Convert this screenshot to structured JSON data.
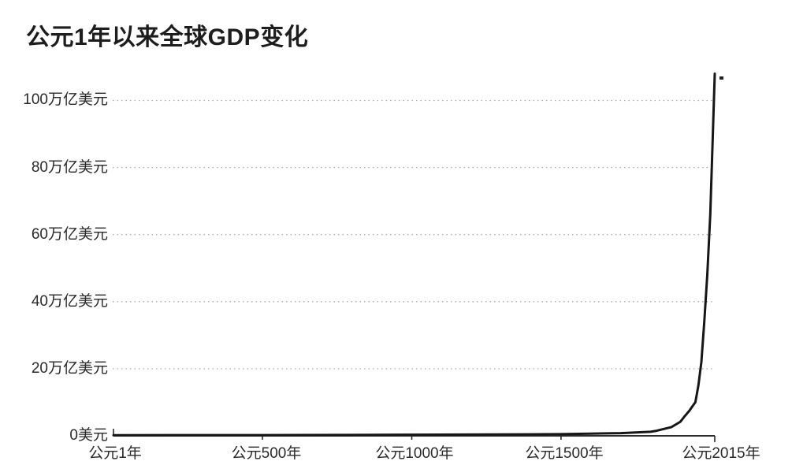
{
  "chart_data": {
    "type": "line",
    "title": "公元1年以来全球GDP变化",
    "xlabel": "",
    "ylabel": "",
    "x_unit": "年",
    "y_unit": "万亿美元",
    "xlim": [
      1,
      2015
    ],
    "ylim": [
      0,
      112
    ],
    "grid": "horizontal-dotted",
    "legend": "none",
    "line_color": "#161616",
    "grid_color": "#a6a6a6",
    "axis_color": "#2b2b2b",
    "x_tick_labels": [
      "公元1年",
      "公元500年",
      "公元1000年",
      "公元1500年",
      "公元2015年"
    ],
    "x_tick_years": [
      1,
      500,
      1000,
      1500,
      2015
    ],
    "y_tick_labels": [
      "100万亿美元",
      "80万亿美元",
      "60万亿美元",
      "40万亿美元",
      "20万亿美元",
      "0美元"
    ],
    "y_tick_values": [
      100,
      80,
      60,
      40,
      20,
      0
    ],
    "series": [
      {
        "name": "全球GDP",
        "points": [
          [
            1,
            0.18
          ],
          [
            200,
            0.2
          ],
          [
            500,
            0.22
          ],
          [
            800,
            0.27
          ],
          [
            1000,
            0.32
          ],
          [
            1200,
            0.38
          ],
          [
            1400,
            0.44
          ],
          [
            1500,
            0.5
          ],
          [
            1600,
            0.65
          ],
          [
            1700,
            0.8
          ],
          [
            1800,
            1.2
          ],
          [
            1820,
            1.5
          ],
          [
            1870,
            2.6
          ],
          [
            1900,
            4.2
          ],
          [
            1913,
            5.7
          ],
          [
            1930,
            7.5
          ],
          [
            1940,
            8.8
          ],
          [
            1950,
            10
          ],
          [
            1960,
            15
          ],
          [
            1970,
            22
          ],
          [
            1980,
            34
          ],
          [
            1990,
            48
          ],
          [
            2000,
            66
          ],
          [
            2008,
            88
          ],
          [
            2012,
            100
          ],
          [
            2015,
            108
          ]
        ]
      }
    ]
  }
}
